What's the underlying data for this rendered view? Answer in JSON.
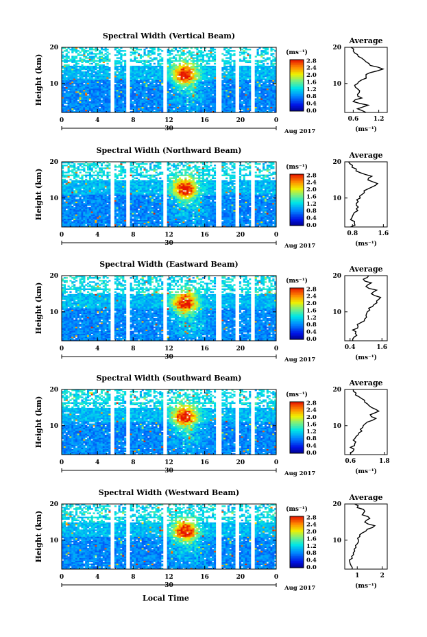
{
  "figure": {
    "xlabel": "Local Time",
    "date_label": "Aug 2017",
    "day_label": "30",
    "colorbar_unit": "(ms⁻¹)",
    "average_title": "Average",
    "average_unit": "(ms⁻¹)"
  },
  "chart_data": [
    {
      "type": "heatmap",
      "title": "Spectral Width (Vertical Beam)",
      "xlabel": "Local Time",
      "ylabel": "Height (km)",
      "xlim": [
        0,
        24
      ],
      "ylim": [
        2,
        20
      ],
      "xticks": [
        "0",
        "4",
        "8",
        "12",
        "16",
        "20",
        "0"
      ],
      "yticks": [
        "10",
        "20"
      ],
      "colorbar": {
        "unit": "(ms⁻¹)",
        "ticks": [
          "0.0",
          "0.4",
          "0.8",
          "1.2",
          "1.6",
          "2.0",
          "2.4",
          "2.8"
        ]
      },
      "average": {
        "title": "Average",
        "xlabel": "(ms⁻¹)",
        "xticks": [
          "0.6",
          "1.2"
        ],
        "xlim": [
          0.4,
          1.4
        ],
        "profile": [
          [
            0.9,
            2
          ],
          [
            0.7,
            3
          ],
          [
            0.95,
            4
          ],
          [
            0.6,
            5
          ],
          [
            0.8,
            6
          ],
          [
            0.7,
            7
          ],
          [
            0.75,
            8
          ],
          [
            0.65,
            9
          ],
          [
            0.7,
            10
          ],
          [
            0.8,
            11
          ],
          [
            0.9,
            12
          ],
          [
            1.0,
            13
          ],
          [
            1.3,
            14
          ],
          [
            1.0,
            15
          ],
          [
            0.9,
            16
          ],
          [
            0.8,
            17
          ],
          [
            0.7,
            18
          ],
          [
            0.6,
            19
          ],
          [
            0.55,
            20
          ]
        ]
      }
    },
    {
      "type": "heatmap",
      "title": "Spectral Width (Northward Beam)",
      "xlabel": "Local Time",
      "ylabel": "Height (km)",
      "xlim": [
        0,
        24
      ],
      "ylim": [
        2,
        20
      ],
      "xticks": [
        "0",
        "4",
        "8",
        "12",
        "16",
        "20",
        "0"
      ],
      "yticks": [
        "10",
        "20"
      ],
      "colorbar": {
        "unit": "(ms⁻¹)",
        "ticks": [
          "0.0",
          "0.4",
          "0.8",
          "1.2",
          "1.6",
          "2.0",
          "2.4",
          "2.8"
        ]
      },
      "average": {
        "title": "Average",
        "xlabel": "(ms⁻¹)",
        "xticks": [
          "0.8",
          "1.6"
        ],
        "xlim": [
          0.6,
          1.7
        ],
        "profile": [
          [
            0.75,
            2
          ],
          [
            0.85,
            3
          ],
          [
            0.75,
            4
          ],
          [
            0.8,
            5
          ],
          [
            0.85,
            6
          ],
          [
            0.9,
            7
          ],
          [
            0.9,
            8
          ],
          [
            0.95,
            9
          ],
          [
            1.0,
            10
          ],
          [
            1.05,
            11
          ],
          [
            1.1,
            12
          ],
          [
            1.3,
            13
          ],
          [
            1.45,
            14
          ],
          [
            1.2,
            15
          ],
          [
            1.3,
            16
          ],
          [
            1.0,
            17
          ],
          [
            0.9,
            18
          ],
          [
            0.8,
            19
          ],
          [
            0.7,
            20
          ]
        ]
      }
    },
    {
      "type": "heatmap",
      "title": "Spectral Width (Eastward Beam)",
      "xlabel": "Local Time",
      "ylabel": "Height (km)",
      "xlim": [
        0,
        24
      ],
      "ylim": [
        2,
        20
      ],
      "xticks": [
        "0",
        "4",
        "8",
        "12",
        "16",
        "20",
        "0"
      ],
      "yticks": [
        "10",
        "20"
      ],
      "colorbar": {
        "unit": "(ms⁻¹)",
        "ticks": [
          "0.0",
          "0.4",
          "0.8",
          "1.2",
          "1.6",
          "2.0",
          "2.4",
          "2.8"
        ]
      },
      "average": {
        "title": "Average",
        "xlabel": "(ms⁻¹)",
        "xticks": [
          "0.4",
          "1.6"
        ],
        "xlim": [
          0.2,
          1.8
        ],
        "profile": [
          [
            0.5,
            2
          ],
          [
            0.55,
            3
          ],
          [
            0.6,
            4
          ],
          [
            0.5,
            5
          ],
          [
            0.7,
            6
          ],
          [
            0.8,
            7
          ],
          [
            0.95,
            8
          ],
          [
            1.0,
            9
          ],
          [
            1.05,
            10
          ],
          [
            1.1,
            11
          ],
          [
            1.3,
            12
          ],
          [
            1.4,
            13
          ],
          [
            1.55,
            14
          ],
          [
            1.2,
            15
          ],
          [
            1.4,
            16
          ],
          [
            1.0,
            17
          ],
          [
            1.2,
            18
          ],
          [
            0.9,
            19
          ],
          [
            1.1,
            20
          ]
        ]
      }
    },
    {
      "type": "heatmap",
      "title": "Spectral Width (Southward Beam)",
      "xlabel": "Local Time",
      "ylabel": "Height (km)",
      "xlim": [
        0,
        24
      ],
      "ylim": [
        2,
        20
      ],
      "xticks": [
        "0",
        "4",
        "8",
        "12",
        "16",
        "20",
        "0"
      ],
      "yticks": [
        "10",
        "20"
      ],
      "colorbar": {
        "unit": "(ms⁻¹)",
        "ticks": [
          "0.0",
          "0.4",
          "0.8",
          "1.2",
          "1.6",
          "2.0",
          "2.4",
          "2.8"
        ]
      },
      "average": {
        "title": "Average",
        "xlabel": "(ms⁻¹)",
        "xticks": [
          "0.6",
          "1.8"
        ],
        "xlim": [
          0.4,
          1.9
        ],
        "profile": [
          [
            0.6,
            2
          ],
          [
            0.7,
            3
          ],
          [
            0.6,
            4
          ],
          [
            0.75,
            5
          ],
          [
            0.7,
            6
          ],
          [
            0.8,
            7
          ],
          [
            0.9,
            8
          ],
          [
            0.95,
            9
          ],
          [
            1.05,
            10
          ],
          [
            1.2,
            11
          ],
          [
            1.5,
            12
          ],
          [
            1.3,
            13
          ],
          [
            1.6,
            14
          ],
          [
            1.35,
            15
          ],
          [
            1.2,
            16
          ],
          [
            1.1,
            17
          ],
          [
            0.9,
            18
          ],
          [
            0.8,
            19
          ],
          [
            0.7,
            20
          ]
        ]
      }
    },
    {
      "type": "heatmap",
      "title": "Spectral Width (Westward Beam)",
      "xlabel": "Local Time",
      "ylabel": "Height (km)",
      "xlim": [
        0,
        24
      ],
      "ylim": [
        2,
        20
      ],
      "xticks": [
        "0",
        "4",
        "8",
        "12",
        "16",
        "20",
        "0"
      ],
      "yticks": [
        "10",
        "20"
      ],
      "colorbar": {
        "unit": "(ms⁻¹)",
        "ticks": [
          "0.0",
          "0.4",
          "0.8",
          "1.2",
          "1.6",
          "2.0",
          "2.4",
          "2.8"
        ]
      },
      "average": {
        "title": "Average",
        "xlabel": "(ms⁻¹)",
        "xticks": [
          "1",
          "2"
        ],
        "xlim": [
          0.5,
          2.2
        ],
        "profile": [
          [
            0.8,
            2
          ],
          [
            0.75,
            3
          ],
          [
            0.7,
            4
          ],
          [
            0.8,
            5
          ],
          [
            0.85,
            6
          ],
          [
            0.9,
            7
          ],
          [
            0.95,
            8
          ],
          [
            1.0,
            9
          ],
          [
            1.05,
            10
          ],
          [
            1.1,
            11
          ],
          [
            1.2,
            12
          ],
          [
            1.4,
            13
          ],
          [
            1.7,
            14
          ],
          [
            1.3,
            15
          ],
          [
            1.5,
            16
          ],
          [
            1.2,
            17
          ],
          [
            1.3,
            18
          ],
          [
            1.0,
            19
          ],
          [
            0.9,
            20
          ]
        ]
      }
    }
  ]
}
